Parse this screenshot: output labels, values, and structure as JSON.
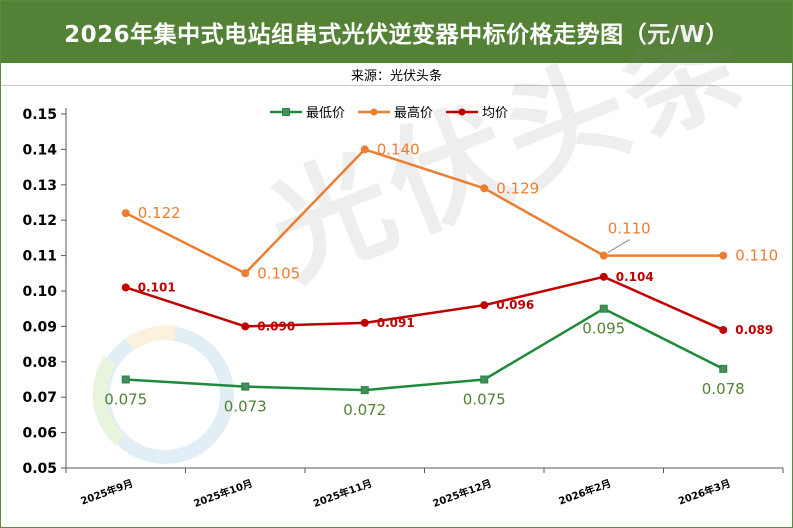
{
  "header": {
    "title": "2026年集中式电站组串式光伏逆变器中标价格走势图（元/W）",
    "source": "来源：光伏头条"
  },
  "watermark": {
    "text": "光伏头条"
  },
  "colors": {
    "title_bg": "#538135",
    "min": "#1e8a3c",
    "max": "#ed7d31",
    "avg": "#c00000",
    "min_label": "#538135"
  },
  "chart_data": {
    "type": "line",
    "categories": [
      "2025年9月",
      "2025年10月",
      "2025年11月",
      "2025年12月",
      "2026年2月",
      "2026年3月"
    ],
    "series": [
      {
        "name": "最低价",
        "values": [
          0.075,
          0.073,
          0.072,
          0.075,
          0.095,
          0.078
        ],
        "labels": [
          "0.075",
          "0.073",
          "0.072",
          "0.075",
          "0.095",
          "0.078"
        ]
      },
      {
        "name": "最高价",
        "values": [
          0.122,
          0.105,
          0.14,
          0.129,
          0.11,
          0.11
        ],
        "labels": [
          "0.122",
          "0.105",
          "0.140",
          "0.129",
          "0.110",
          "0.110"
        ]
      },
      {
        "name": "均价",
        "values": [
          0.101,
          0.09,
          0.091,
          0.096,
          0.104,
          0.089
        ],
        "labels": [
          "0.101",
          "0.090",
          "0.091",
          "0.096",
          "0.104",
          "0.089"
        ]
      }
    ],
    "ylim": [
      0.05,
      0.15
    ],
    "yticks": [
      "0.05",
      "0.06",
      "0.07",
      "0.08",
      "0.09",
      "0.10",
      "0.11",
      "0.12",
      "0.13",
      "0.14",
      "0.15"
    ],
    "legend_position": "top-center",
    "grid": false
  }
}
